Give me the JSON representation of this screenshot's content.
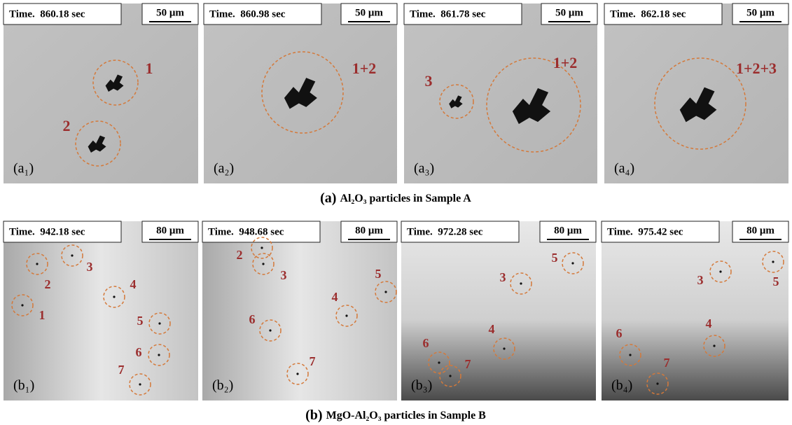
{
  "figure": {
    "rows": [
      {
        "caption": {
          "tag": "(a)",
          "text": "Al₂O₃ particles in Sample A"
        },
        "panels": [
          {
            "time": "Time.  860.18 sec",
            "scale": "50 μm",
            "label": "(a₁)",
            "markers": [
              "1",
              "2"
            ]
          },
          {
            "time": "Time.  860.98 sec",
            "scale": "50 μm",
            "label": "(a₂)",
            "markers": [
              "1+2"
            ]
          },
          {
            "time": "Time.  861.78 sec",
            "scale": "50 μm",
            "label": "(a₃)",
            "markers": [
              "3",
              "1+2"
            ]
          },
          {
            "time": "Time.  862.18 sec",
            "scale": "50 μm",
            "label": "(a₄)",
            "markers": [
              "1+2+3"
            ]
          }
        ]
      },
      {
        "caption": {
          "tag": "(b)",
          "text": "MgO-Al₂O₃ particles in Sample B"
        },
        "panels": [
          {
            "time": "Time.  942.18 sec",
            "scale": "80 μm",
            "label": "(b₁)",
            "markers": [
              "3",
              "2",
              "1",
              "4",
              "5",
              "6",
              "7"
            ]
          },
          {
            "time": "Time.  948.68 sec",
            "scale": "80 μm",
            "label": "(b₂)",
            "markers": [
              "2",
              "3",
              "5",
              "4",
              "6",
              "7"
            ]
          },
          {
            "time": "Time.  972.28 sec",
            "scale": "80 μm",
            "label": "(b₃)",
            "markers": [
              "5",
              "3",
              "4",
              "6",
              "7"
            ]
          },
          {
            "time": "Time.  975.42 sec",
            "scale": "80 μm",
            "label": "(b₄)",
            "markers": [
              "5",
              "3",
              "4",
              "6",
              "7"
            ]
          }
        ]
      }
    ]
  }
}
